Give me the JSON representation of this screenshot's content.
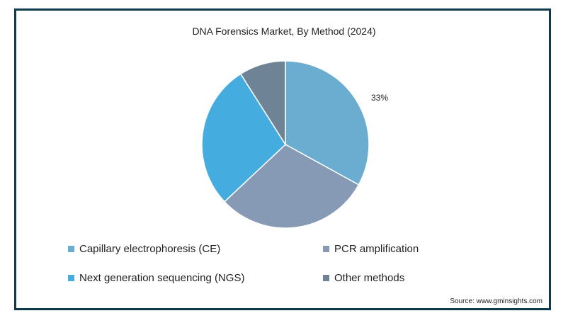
{
  "chart_data": {
    "type": "pie",
    "title": "DNA Forensics Market, By Method (2024)",
    "slices": [
      {
        "name": "Capillary electrophoresis (CE)",
        "value": 33,
        "color": "#6badd0"
      },
      {
        "name": "PCR amplification",
        "value": 30,
        "color": "#8699b5"
      },
      {
        "name": "Next generation sequencing (NGS)",
        "value": 28,
        "color": "#45ace0"
      },
      {
        "name": "Other methods",
        "value": 9,
        "color": "#6e8396"
      }
    ],
    "data_labels": [
      {
        "slice": "Capillary electrophoresis (CE)",
        "text": "33%"
      }
    ],
    "legend_placement": "bottom"
  },
  "source": "Source: www.gminsights.com",
  "frame_color": "#0f3a4a"
}
